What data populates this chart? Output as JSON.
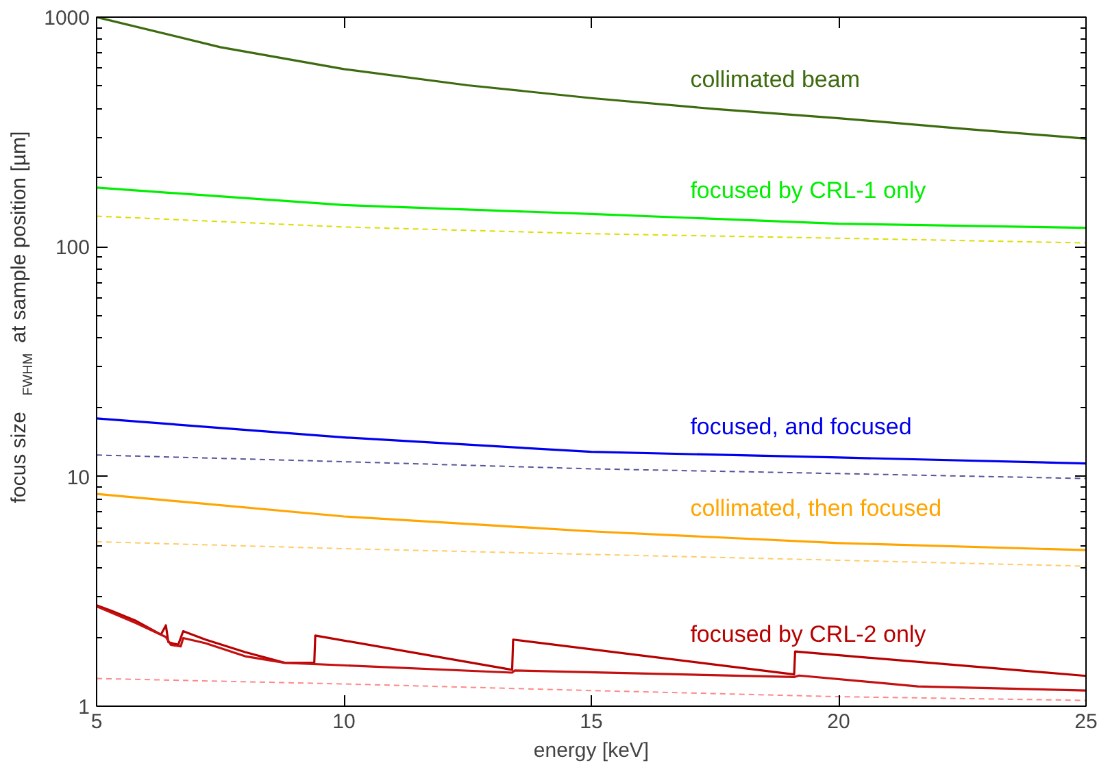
{
  "chart_data": {
    "type": "line",
    "xlabel": "energy [keV]",
    "ylabel": "focus size $_{FWHM}$ at sample position [µm]",
    "log": "y",
    "xlim": [
      5,
      25
    ],
    "xticks": [
      5,
      10,
      15,
      20,
      25
    ],
    "ylim": [
      1,
      1000
    ],
    "yticks": [
      1,
      10,
      100,
      1000
    ],
    "grid": false,
    "legend": false,
    "marker": "none",
    "series": [
      {
        "name": "collimated beam",
        "color": "#3d6b0f",
        "x": [
          5,
          7.5,
          10,
          12.5,
          15,
          17.5,
          20,
          22.5,
          25
        ],
        "values": [
          1000,
          740,
          594,
          505,
          444,
          398,
          363,
          327,
          296
        ]
      },
      {
        "name": "focused by CRL-1 only",
        "color": "#00ee00",
        "x": [
          5,
          10,
          15,
          20,
          25
        ],
        "values": [
          181,
          152,
          139,
          126,
          121
        ]
      },
      {
        "color": "#dddd00",
        "line_style": "dashed",
        "x": [
          5,
          10,
          15,
          20,
          25
        ],
        "values": [
          136,
          122,
          114,
          109,
          104
        ]
      },
      {
        "name": "focused, and focused",
        "color": "#0000ee",
        "x": [
          5,
          10,
          15,
          20,
          25
        ],
        "values": [
          17.9,
          14.8,
          12.8,
          12.1,
          11.4
        ]
      },
      {
        "color": "#555599",
        "line_style": "dashed",
        "x": [
          5,
          10,
          15,
          20,
          25
        ],
        "values": [
          12.4,
          11.6,
          10.8,
          10.3,
          9.8
        ]
      },
      {
        "name": "collimated, then focused",
        "color": "#ffa500",
        "x": [
          5,
          10,
          15,
          20,
          25
        ],
        "values": [
          8.4,
          6.7,
          5.77,
          5.13,
          4.78
        ]
      },
      {
        "color": "#ffcc66",
        "line_style": "dashed",
        "x": [
          5,
          10,
          15,
          20,
          25
        ],
        "values": [
          5.2,
          4.85,
          4.58,
          4.32,
          4.07
        ]
      },
      {
        "name": "focused by CRL-2 only",
        "color": "#b80000",
        "x": [
          5,
          5.3,
          5.8,
          6.3,
          6.4,
          6.45,
          6.65,
          6.75,
          7.2,
          8,
          8.8,
          9.4,
          9.42,
          13.4,
          13.42,
          19.1,
          19.12,
          25
        ],
        "values": [
          2.75,
          2.6,
          2.35,
          2.05,
          2.25,
          1.9,
          1.85,
          2.12,
          1.95,
          1.72,
          1.545,
          1.545,
          2.03,
          1.44,
          1.95,
          1.375,
          1.73,
          1.355
        ]
      },
      {
        "color": "#c41010",
        "x": [
          5,
          5.8,
          6.4,
          6.5,
          6.7,
          6.75,
          7.2,
          8,
          8.8,
          13.4,
          13.45,
          19.1,
          19.2,
          21.6,
          25
        ],
        "values": [
          2.72,
          2.3,
          2.0,
          1.85,
          1.82,
          1.98,
          1.88,
          1.65,
          1.545,
          1.4,
          1.43,
          1.34,
          1.36,
          1.22,
          1.17
        ]
      },
      {
        "color": "#ff8888",
        "line_style": "dashed",
        "x": [
          5,
          10,
          15,
          20,
          25
        ],
        "values": [
          1.32,
          1.25,
          1.17,
          1.1,
          1.06
        ]
      }
    ]
  }
}
